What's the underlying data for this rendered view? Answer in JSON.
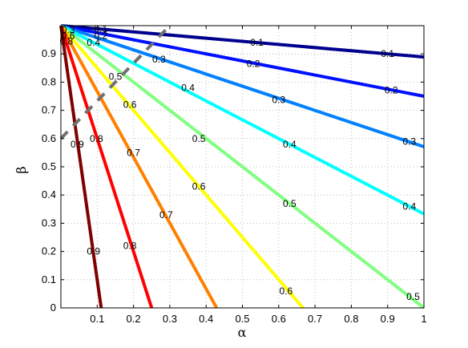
{
  "chart_data": {
    "type": "line",
    "subtype": "contour",
    "xlabel": "α",
    "ylabel": "β",
    "xlim": [
      0,
      1
    ],
    "ylim": [
      0,
      1
    ],
    "grid": true,
    "x_ticks": [
      "0.1",
      "0.2",
      "0.3",
      "0.4",
      "0.5",
      "0.6",
      "0.7",
      "0.8",
      "0.9",
      "1"
    ],
    "y_ticks": [
      "0",
      "0.1",
      "0.2",
      "0.3",
      "0.4",
      "0.5",
      "0.6",
      "0.7",
      "0.8",
      "0.9"
    ],
    "contour_lines": [
      {
        "level": "0.1",
        "color": "#00008f",
        "from": [
          0,
          1
        ],
        "to": [
          1,
          0.889
        ]
      },
      {
        "level": "0.2",
        "color": "#0010ff",
        "from": [
          0,
          1
        ],
        "to": [
          1,
          0.75
        ]
      },
      {
        "level": "0.3",
        "color": "#0080ff",
        "from": [
          0,
          1
        ],
        "to": [
          1,
          0.571
        ]
      },
      {
        "level": "0.4",
        "color": "#00ffff",
        "from": [
          0,
          1
        ],
        "to": [
          1,
          0.333
        ]
      },
      {
        "level": "0.5",
        "color": "#80ff80",
        "from": [
          0,
          1
        ],
        "to": [
          1,
          0
        ]
      },
      {
        "level": "0.6",
        "color": "#ffff00",
        "from": [
          0,
          1
        ],
        "to": [
          0.667,
          0
        ]
      },
      {
        "level": "0.7",
        "color": "#ff8000",
        "from": [
          0,
          1
        ],
        "to": [
          0.429,
          0
        ]
      },
      {
        "level": "0.8",
        "color": "#ff0000",
        "from": [
          0,
          1
        ],
        "to": [
          0.25,
          0
        ]
      },
      {
        "level": "0.9",
        "color": "#800000",
        "from": [
          0,
          1
        ],
        "to": [
          0.111,
          0
        ]
      }
    ],
    "dashed_line": {
      "color": "#707070",
      "from": [
        0,
        0.6
      ],
      "to": [
        0.3,
        1
      ]
    },
    "contour_labels": [
      {
        "text": "0.1",
        "x": 0.11,
        "y": 0.988
      },
      {
        "text": "0.1",
        "x": 0.54,
        "y": 0.94
      },
      {
        "text": "0.1",
        "x": 0.9,
        "y": 0.9
      },
      {
        "text": "0.2",
        "x": 0.11,
        "y": 0.965
      },
      {
        "text": "0.2",
        "x": 0.53,
        "y": 0.865
      },
      {
        "text": "0.2",
        "x": 0.91,
        "y": 0.772
      },
      {
        "text": "0.3",
        "x": 0.02,
        "y": 0.985
      },
      {
        "text": "0.3",
        "x": 0.27,
        "y": 0.88
      },
      {
        "text": "0.3",
        "x": 0.6,
        "y": 0.737
      },
      {
        "text": "0.3",
        "x": 0.96,
        "y": 0.59
      },
      {
        "text": "0.4",
        "x": 0.09,
        "y": 0.94
      },
      {
        "text": "0.4",
        "x": 0.35,
        "y": 0.78
      },
      {
        "text": "0.4",
        "x": 0.63,
        "y": 0.58
      },
      {
        "text": "0.4",
        "x": 0.96,
        "y": 0.36
      },
      {
        "text": "0.5",
        "x": 0.15,
        "y": 0.82
      },
      {
        "text": "0.5",
        "x": 0.38,
        "y": 0.6
      },
      {
        "text": "0.5",
        "x": 0.63,
        "y": 0.37
      },
      {
        "text": "0.5",
        "x": 0.97,
        "y": 0.04
      },
      {
        "text": "0.6",
        "x": 0.02,
        "y": 0.965
      },
      {
        "text": "0.6",
        "x": 0.19,
        "y": 0.72
      },
      {
        "text": "0.6",
        "x": 0.38,
        "y": 0.43
      },
      {
        "text": "0.6",
        "x": 0.62,
        "y": 0.06
      },
      {
        "text": "0.7",
        "x": 0.2,
        "y": 0.55
      },
      {
        "text": "0.7",
        "x": 0.29,
        "y": 0.33
      },
      {
        "text": "0.8",
        "x": 0.015,
        "y": 0.945
      },
      {
        "text": "0.8",
        "x": 0.098,
        "y": 0.6
      },
      {
        "text": "0.8",
        "x": 0.19,
        "y": 0.22
      },
      {
        "text": "0.9",
        "x": 0.045,
        "y": 0.58
      },
      {
        "text": "0.9",
        "x": 0.09,
        "y": 0.2
      }
    ]
  }
}
